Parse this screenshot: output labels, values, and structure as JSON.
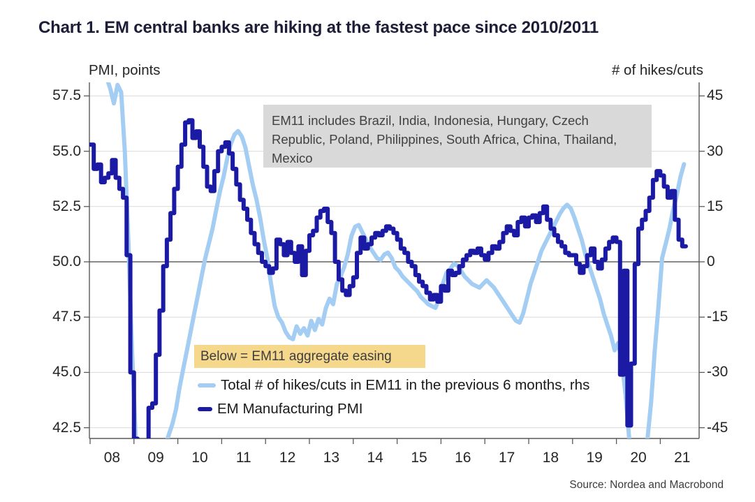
{
  "title": "Chart 1. EM central banks are hiking at the fastest pace since 2010/2011",
  "left_axis": {
    "label": "PMI, points",
    "tick_labels": [
      "57.5",
      "55.0",
      "52.5",
      "50.0",
      "47.5",
      "45.0",
      "42.5"
    ]
  },
  "right_axis": {
    "label": "# of hikes/cuts",
    "tick_labels": [
      "45",
      "30",
      "15",
      "0",
      "-15",
      "-30",
      "-45"
    ]
  },
  "x_axis": {
    "tick_labels": [
      "08",
      "09",
      "10",
      "11",
      "12",
      "13",
      "14",
      "15",
      "16",
      "17",
      "18",
      "19",
      "20",
      "21"
    ]
  },
  "annotation": "EM11 includes Brazil, India, Indonesia, Hungary, Czech Republic, Poland, Philippines, South Africa, China, Thailand, Mexico",
  "highlight_note": "Below = EM11 aggregate easing",
  "legend": {
    "items": [
      {
        "label": "Total # of hikes/cuts in EM11 in the previous 6 months, rhs"
      },
      {
        "label": "EM Manufacturing PMI"
      }
    ]
  },
  "source": "Source: Nordea and Macrobond",
  "colors": {
    "hikes_line": "#a3cdf2",
    "pmi_line": "#1b1aa5",
    "grid": "#d9d9d9",
    "zero_line": "#454545",
    "axis": "#595959",
    "text": "#262626",
    "title_text": "#1d1d38",
    "annotation_bg": "#d9d9d9",
    "annotation_text": "#414141",
    "highlight_bg": "#f6d88d",
    "highlight_text": "#3d3d3d",
    "source_text": "#3c3c3c"
  },
  "chart_data": {
    "type": "line",
    "title": "Chart 1. EM central banks are hiking at the fastest pace since 2010/2011",
    "x": {
      "start_year": 2008,
      "frequency": "monthly",
      "end": "2021-07",
      "tick_labels": [
        "08",
        "09",
        "10",
        "11",
        "12",
        "13",
        "14",
        "15",
        "16",
        "17",
        "18",
        "19",
        "20",
        "21"
      ]
    },
    "left_axis": {
      "label": "PMI, points",
      "ticks": [
        57.5,
        55.0,
        52.5,
        50.0,
        47.5,
        45.0,
        42.5
      ],
      "range": [
        42.0,
        58.1
      ]
    },
    "right_axis": {
      "label": "# of hikes/cuts",
      "ticks": [
        45,
        30,
        15,
        0,
        -15,
        -30,
        -45
      ],
      "range": [
        -47.9,
        48.5
      ]
    },
    "grid": "horizontal",
    "zero_reference_line": true,
    "legend_position": "inside bottom-left",
    "series": [
      {
        "name": "Total # of hikes/cuts in EM11 in the previous 6 months, rhs",
        "axis": "right",
        "color": "#a3cdf2",
        "style": "line",
        "values": [
          50,
          52,
          54,
          53,
          50,
          47,
          43,
          48,
          46,
          30,
          5,
          -25,
          -48,
          -55,
          -58,
          -60,
          -60,
          -58,
          -56,
          -53,
          -50,
          -47,
          -44,
          -40,
          -34,
          -29,
          -24,
          -19,
          -14,
          -9,
          -4,
          1,
          5,
          9,
          14,
          19,
          23,
          28,
          32,
          34.5,
          35.5,
          34,
          31,
          26,
          21,
          17,
          12,
          6,
          1,
          -6,
          -12,
          -15,
          -16.5,
          -19,
          -20.5,
          -21,
          -17.5,
          -19.5,
          -18,
          -20,
          -16,
          -18.5,
          -15.5,
          -17,
          -12.5,
          -10,
          -11.5,
          -6,
          -4,
          -1.5,
          2,
          7,
          9.5,
          10,
          8,
          6,
          4,
          2.5,
          1,
          0.5,
          2,
          2.5,
          1,
          -1.5,
          -2.5,
          -4,
          -5,
          -6,
          -7,
          -8,
          -9.5,
          -10.5,
          -11.5,
          -12,
          -12.5,
          -10,
          -6,
          -3,
          -2,
          -0.5,
          -1,
          -2.5,
          -4,
          -5,
          -6,
          -6.5,
          -7,
          -6,
          -5,
          -6,
          -7,
          -8.5,
          -10,
          -11.5,
          -13,
          -14.5,
          -16,
          -16.5,
          -14,
          -10,
          -6,
          -3,
          0,
          3,
          5,
          7,
          9,
          11,
          13,
          14.5,
          15.5,
          14.5,
          12,
          9,
          6,
          2,
          -1,
          -4,
          -7,
          -10,
          -14,
          -17,
          -20,
          -24,
          -22,
          -27,
          -36,
          -48,
          -56,
          -58,
          -57,
          -53,
          -48,
          -38,
          -24,
          -12,
          1,
          5,
          9,
          14,
          18,
          23,
          26.5
        ]
      },
      {
        "name": "EM Manufacturing PMI",
        "axis": "left",
        "color": "#1b1aa5",
        "style": "step",
        "values": [
          55.3,
          54.2,
          54.4,
          53.6,
          53.8,
          54.0,
          54.6,
          53.8,
          53.3,
          52.9,
          50.3,
          45.0,
          42.0,
          41.0,
          40.8,
          41.2,
          43.4,
          43.6,
          45.8,
          47.8,
          49.8,
          51.0,
          52.2,
          53.3,
          54.3,
          55.3,
          56.3,
          56.4,
          55.6,
          55.9,
          55.2,
          54.3,
          53.4,
          53.2,
          54.1,
          55.0,
          55.2,
          55.4,
          54.9,
          54.2,
          53.5,
          52.8,
          52.4,
          51.9,
          51.3,
          50.8,
          50.4,
          50.0,
          49.8,
          49.5,
          49.7,
          51.0,
          50.8,
          50.3,
          50.9,
          50.4,
          50.0,
          50.7,
          49.4,
          50.5,
          51.2,
          51.4,
          52.0,
          52.3,
          52.4,
          51.8,
          51.3,
          50.0,
          49.2,
          48.7,
          48.5,
          48.9,
          49.3,
          50.4,
          51.1,
          50.6,
          50.8,
          51.1,
          51.3,
          51.2,
          51.4,
          51.6,
          51.5,
          51.3,
          51.0,
          50.6,
          50.4,
          50.0,
          49.8,
          49.4,
          49.1,
          48.9,
          48.6,
          48.3,
          48.5,
          48.2,
          48.9,
          48.7,
          49.6,
          49.4,
          49.5,
          49.8,
          50.1,
          50.3,
          50.5,
          50.4,
          50.6,
          50.3,
          50.1,
          50.4,
          50.7,
          50.6,
          50.9,
          51.3,
          51.6,
          51.4,
          51.2,
          51.8,
          52.0,
          51.6,
          52.0,
          52.1,
          51.8,
          52.2,
          52.5,
          51.9,
          51.5,
          51.2,
          50.9,
          50.7,
          50.4,
          50.3,
          50.3,
          49.9,
          49.5,
          49.8,
          50.3,
          50.6,
          50.0,
          49.7,
          50.1,
          50.6,
          50.9,
          51.1,
          50.9,
          44.9,
          49.6,
          42.6,
          45.4,
          49.9,
          51.5,
          51.9,
          52.3,
          52.9,
          53.7,
          54.1,
          53.9,
          53.4,
          52.9,
          53.2,
          51.9,
          51.0,
          50.7
        ]
      }
    ]
  }
}
